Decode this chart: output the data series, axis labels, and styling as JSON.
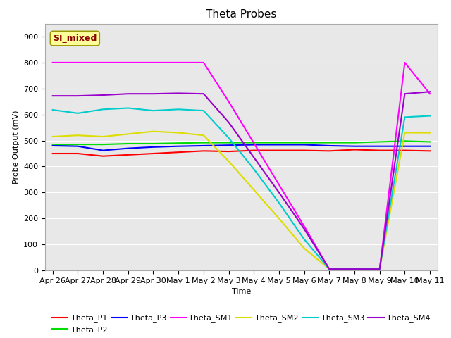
{
  "title": "Theta Probes",
  "xlabel": "Time",
  "ylabel": "Probe Output (mV)",
  "ylim": [
    0,
    950
  ],
  "yticks": [
    0,
    100,
    200,
    300,
    400,
    500,
    600,
    700,
    800,
    900
  ],
  "background_color": "#e8e8e8",
  "annotation_text": "SI_mixed",
  "annotation_color": "#8B0000",
  "annotation_bg": "#ffff99",
  "annotation_edge": "#999900",
  "series_order": [
    "Theta_P1",
    "Theta_P2",
    "Theta_P3",
    "Theta_SM1",
    "Theta_SM2",
    "Theta_SM3",
    "Theta_SM4"
  ],
  "series": {
    "Theta_P1": {
      "color": "#ff0000",
      "data_y": [
        450,
        450,
        440,
        445,
        450,
        455,
        460,
        458,
        462,
        462,
        462,
        460,
        465,
        462,
        462,
        460
      ]
    },
    "Theta_P2": {
      "color": "#00dd00",
      "data_y": [
        482,
        485,
        485,
        488,
        488,
        490,
        492,
        492,
        492,
        492,
        492,
        492,
        492,
        495,
        498,
        495
      ]
    },
    "Theta_P3": {
      "color": "#0000ff",
      "data_y": [
        480,
        478,
        462,
        470,
        475,
        478,
        480,
        482,
        484,
        484,
        484,
        480,
        478,
        478,
        478,
        478
      ]
    },
    "Theta_SM1": {
      "color": "#ff00ff",
      "data_y": [
        800,
        800,
        800,
        800,
        800,
        800,
        800,
        650,
        490,
        330,
        170,
        5,
        5,
        5,
        800,
        680
      ]
    },
    "Theta_SM2": {
      "color": "#dddd00",
      "data_y": [
        515,
        520,
        515,
        525,
        535,
        530,
        520,
        420,
        310,
        200,
        85,
        5,
        5,
        5,
        530,
        530
      ]
    },
    "Theta_SM3": {
      "color": "#00cccc",
      "data_y": [
        618,
        605,
        620,
        625,
        615,
        620,
        615,
        510,
        390,
        260,
        120,
        5,
        5,
        5,
        590,
        595
      ]
    },
    "Theta_SM4": {
      "color": "#9900cc",
      "data_y": [
        672,
        672,
        675,
        680,
        680,
        682,
        680,
        570,
        435,
        300,
        160,
        5,
        5,
        5,
        680,
        688
      ]
    }
  },
  "xtick_labels": [
    "Apr 26",
    "Apr 27",
    "Apr 28",
    "Apr 29",
    "Apr 30",
    "May 1",
    "May 2",
    "May 3",
    "May 4",
    "May 5",
    "May 6",
    "May 7",
    "May 8",
    "May 9",
    "May 10",
    "May 11"
  ],
  "title_fontsize": 11,
  "axis_fontsize": 8,
  "tick_fontsize": 8,
  "legend_fontsize": 8,
  "linewidth": 1.5,
  "grid_color": "#ffffff",
  "fig_bg": "#ffffff"
}
